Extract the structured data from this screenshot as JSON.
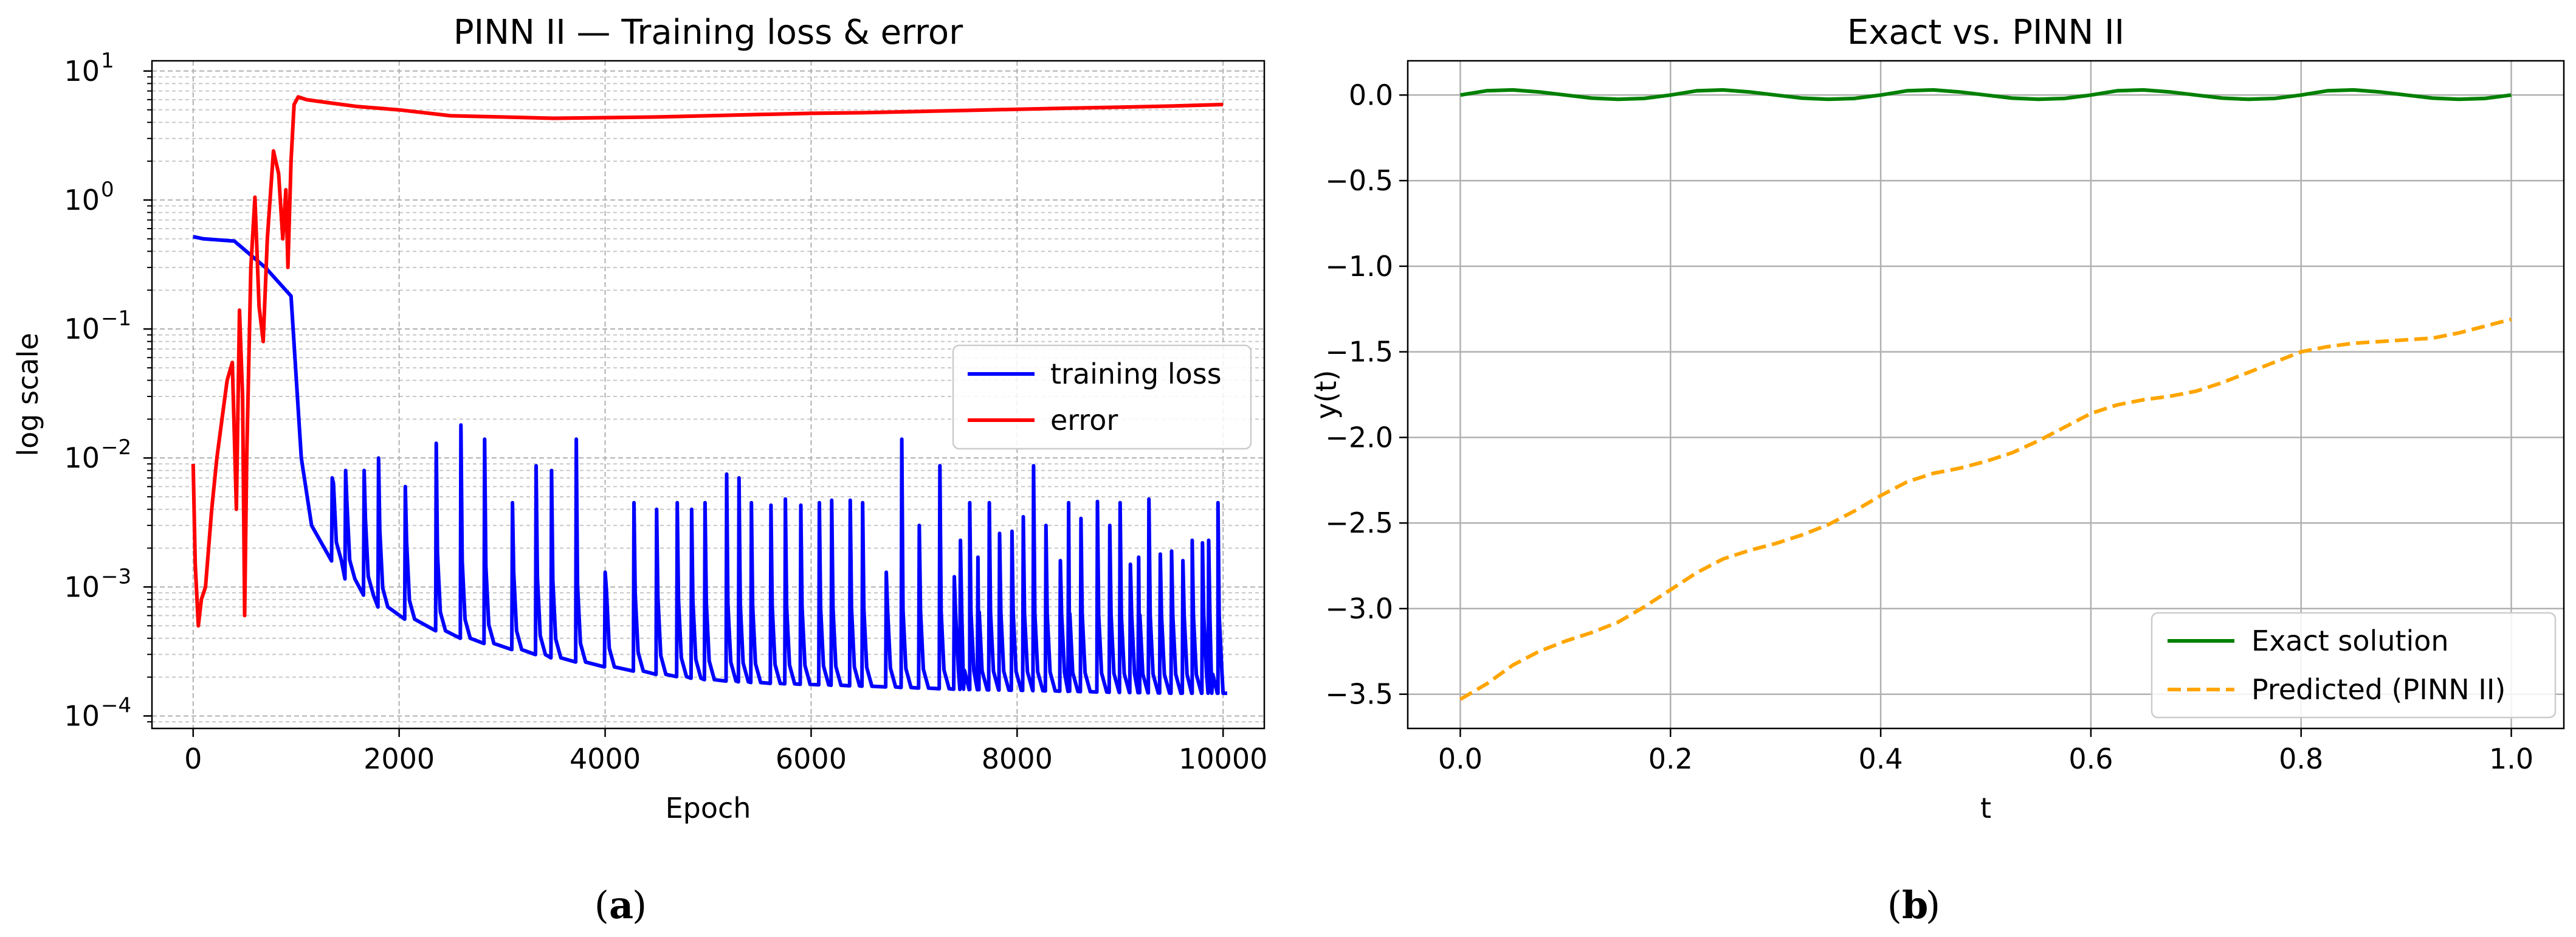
{
  "chart_data": [
    {
      "panel": "a",
      "type": "line",
      "title": "PINN II — Training loss & error",
      "xlabel": "Epoch",
      "ylabel": "log scale",
      "xlim": [
        -400,
        10400
      ],
      "ylim": [
        8e-05,
        12
      ],
      "yscale": "log",
      "xticks": [
        0,
        2000,
        4000,
        6000,
        8000,
        10000
      ],
      "xtick_labels": [
        "0",
        "2000",
        "4000",
        "6000",
        "8000",
        "10000"
      ],
      "yticks": [
        0.0001,
        0.001,
        0.01,
        0.1,
        1,
        10
      ],
      "ytick_labels": [
        "10",
        "10",
        "10",
        "10",
        "10",
        "10"
      ],
      "ytick_exponents": [
        "−4",
        "−3",
        "−2",
        "−1",
        "0",
        "1"
      ],
      "grid": true,
      "legend": "center-right",
      "series": [
        {
          "name": "training loss",
          "color": "#0000ff",
          "baseline": {
            "x": [
              0,
              100,
              400,
              700,
              950,
              1050,
              1150,
              1300,
              1500,
              1800,
              2200,
              2600,
              3000,
              3500,
              4000,
              4500,
              5000,
              5500,
              6000,
              6500,
              7000,
              7500,
              8000,
              8500,
              9000,
              9500,
              10000
            ],
            "y": [
              0.52,
              0.5,
              0.48,
              0.3,
              0.18,
              0.01,
              0.003,
              0.0018,
              0.0011,
              0.0007,
              0.0005,
              0.0004,
              0.00034,
              0.00028,
              0.00024,
              0.00021,
              0.00019,
              0.00018,
              0.000175,
              0.00017,
              0.000165,
              0.00016,
              0.000158,
              0.000155,
              0.000152,
              0.00015,
              0.00015
            ]
          },
          "spikes": {
            "x": [
              1350,
              1480,
              1660,
              1800,
              2060,
              2360,
              2600,
              2830,
              3100,
              3330,
              3480,
              3720,
              4000,
              4280,
              4500,
              4700,
              4840,
              4970,
              5180,
              5300,
              5420,
              5610,
              5750,
              5900,
              6080,
              6200,
              6380,
              6500,
              6730,
              6880,
              7050,
              7250,
              7390,
              7450,
              7540,
              7620,
              7730,
              7830,
              7950,
              8060,
              8160,
              8280,
              8420,
              8500,
              8620,
              8780,
              8900,
              9000,
              9100,
              9180,
              9280,
              9390,
              9500,
              9610,
              9700,
              9800,
              9860,
              9950
            ],
            "y": [
              0.007,
              0.008,
              0.008,
              0.01,
              0.006,
              0.013,
              0.018,
              0.014,
              0.0045,
              0.0087,
              0.008,
              0.014,
              0.0013,
              0.0045,
              0.004,
              0.0045,
              0.004,
              0.0045,
              0.0075,
              0.007,
              0.0045,
              0.0043,
              0.0048,
              0.0043,
              0.0045,
              0.0047,
              0.0047,
              0.0045,
              0.0013,
              0.014,
              0.003,
              0.0087,
              0.0012,
              0.0023,
              0.0045,
              0.0017,
              0.0045,
              0.0026,
              0.0027,
              0.0035,
              0.0087,
              0.003,
              0.0016,
              0.0045,
              0.0034,
              0.0046,
              0.003,
              0.0045,
              0.0015,
              0.0017,
              0.0048,
              0.0018,
              0.0019,
              0.0016,
              0.0023,
              0.0022,
              0.0023,
              0.0045
            ]
          }
        },
        {
          "name": "error",
          "color": "#ff0000",
          "x": [
            0,
            20,
            50,
            80,
            120,
            180,
            230,
            280,
            330,
            380,
            420,
            450,
            480,
            500,
            520,
            560,
            600,
            640,
            680,
            720,
            780,
            830,
            870,
            900,
            920,
            950,
            980,
            1020,
            1100,
            1300,
            1600,
            2000,
            2500,
            3000,
            3500,
            4000,
            4500,
            5000,
            5500,
            6000,
            6500,
            7000,
            7500,
            8000,
            8500,
            9000,
            9500,
            10000
          ],
          "y": [
            0.009,
            0.0015,
            0.0005,
            0.0008,
            0.001,
            0.004,
            0.01,
            0.02,
            0.04,
            0.055,
            0.004,
            0.14,
            0.03,
            0.0006,
            0.01,
            0.3,
            1.05,
            0.15,
            0.08,
            0.5,
            2.4,
            1.6,
            0.5,
            1.2,
            0.3,
            2.0,
            5.5,
            6.3,
            6.0,
            5.7,
            5.3,
            5.0,
            4.5,
            4.4,
            4.3,
            4.35,
            4.4,
            4.5,
            4.6,
            4.7,
            4.75,
            4.85,
            4.95,
            5.05,
            5.15,
            5.25,
            5.35,
            5.5
          ]
        }
      ]
    },
    {
      "panel": "b",
      "type": "line",
      "title": "Exact vs. PINN II",
      "xlabel": "t",
      "ylabel": "y(t)",
      "xlim": [
        -0.05,
        1.05
      ],
      "ylim": [
        -3.7,
        0.2
      ],
      "xticks": [
        0.0,
        0.2,
        0.4,
        0.6,
        0.8,
        1.0
      ],
      "xtick_labels": [
        "0.0",
        "0.2",
        "0.4",
        "0.6",
        "0.8",
        "1.0"
      ],
      "yticks": [
        0.0,
        -0.5,
        -1.0,
        -1.5,
        -2.0,
        -2.5,
        -3.0,
        -3.5
      ],
      "ytick_labels": [
        "0.0",
        "−0.5",
        "−1.0",
        "−1.5",
        "−2.0",
        "−2.5",
        "−3.0",
        "−3.5"
      ],
      "grid": true,
      "legend": "lower-right",
      "series": [
        {
          "name": "Exact solution",
          "color": "#008000",
          "style": "solid",
          "x": [
            0.0,
            0.025,
            0.05,
            0.075,
            0.1,
            0.125,
            0.15,
            0.175,
            0.2,
            0.225,
            0.25,
            0.275,
            0.3,
            0.325,
            0.35,
            0.375,
            0.4,
            0.425,
            0.45,
            0.475,
            0.5,
            0.525,
            0.55,
            0.575,
            0.6,
            0.625,
            0.65,
            0.675,
            0.7,
            0.725,
            0.75,
            0.775,
            0.8,
            0.825,
            0.85,
            0.875,
            0.9,
            0.925,
            0.95,
            0.975,
            1.0
          ],
          "y": [
            0.0,
            0.025,
            0.03,
            0.018,
            0.0,
            -0.018,
            -0.025,
            -0.02,
            0.0,
            0.025,
            0.03,
            0.018,
            0.0,
            -0.018,
            -0.025,
            -0.02,
            0.0,
            0.025,
            0.03,
            0.018,
            0.0,
            -0.018,
            -0.025,
            -0.02,
            0.0,
            0.025,
            0.03,
            0.018,
            0.0,
            -0.018,
            -0.025,
            -0.02,
            0.0,
            0.025,
            0.03,
            0.018,
            0.0,
            -0.018,
            -0.025,
            -0.02,
            0.0
          ]
        },
        {
          "name": "Predicted (PINN II)",
          "color": "#ffa500",
          "style": "dashed",
          "x": [
            0.0,
            0.025,
            0.05,
            0.075,
            0.1,
            0.125,
            0.15,
            0.175,
            0.2,
            0.225,
            0.25,
            0.275,
            0.3,
            0.325,
            0.35,
            0.375,
            0.4,
            0.425,
            0.45,
            0.475,
            0.5,
            0.525,
            0.55,
            0.575,
            0.6,
            0.625,
            0.65,
            0.675,
            0.7,
            0.725,
            0.75,
            0.775,
            0.8,
            0.825,
            0.85,
            0.875,
            0.9,
            0.925,
            0.95,
            0.975,
            1.0
          ],
          "y": [
            -3.53,
            -3.44,
            -3.33,
            -3.25,
            -3.19,
            -3.14,
            -3.08,
            -2.99,
            -2.89,
            -2.79,
            -2.71,
            -2.66,
            -2.62,
            -2.57,
            -2.51,
            -2.43,
            -2.34,
            -2.26,
            -2.21,
            -2.18,
            -2.14,
            -2.09,
            -2.02,
            -1.94,
            -1.86,
            -1.81,
            -1.78,
            -1.76,
            -1.73,
            -1.68,
            -1.62,
            -1.56,
            -1.5,
            -1.47,
            -1.45,
            -1.44,
            -1.43,
            -1.42,
            -1.39,
            -1.35,
            -1.31
          ]
        }
      ]
    }
  ],
  "captions": {
    "a": {
      "open": "(",
      "letter": "a",
      "close": ")"
    },
    "b": {
      "open": "(",
      "letter": "b",
      "close": ")"
    }
  }
}
